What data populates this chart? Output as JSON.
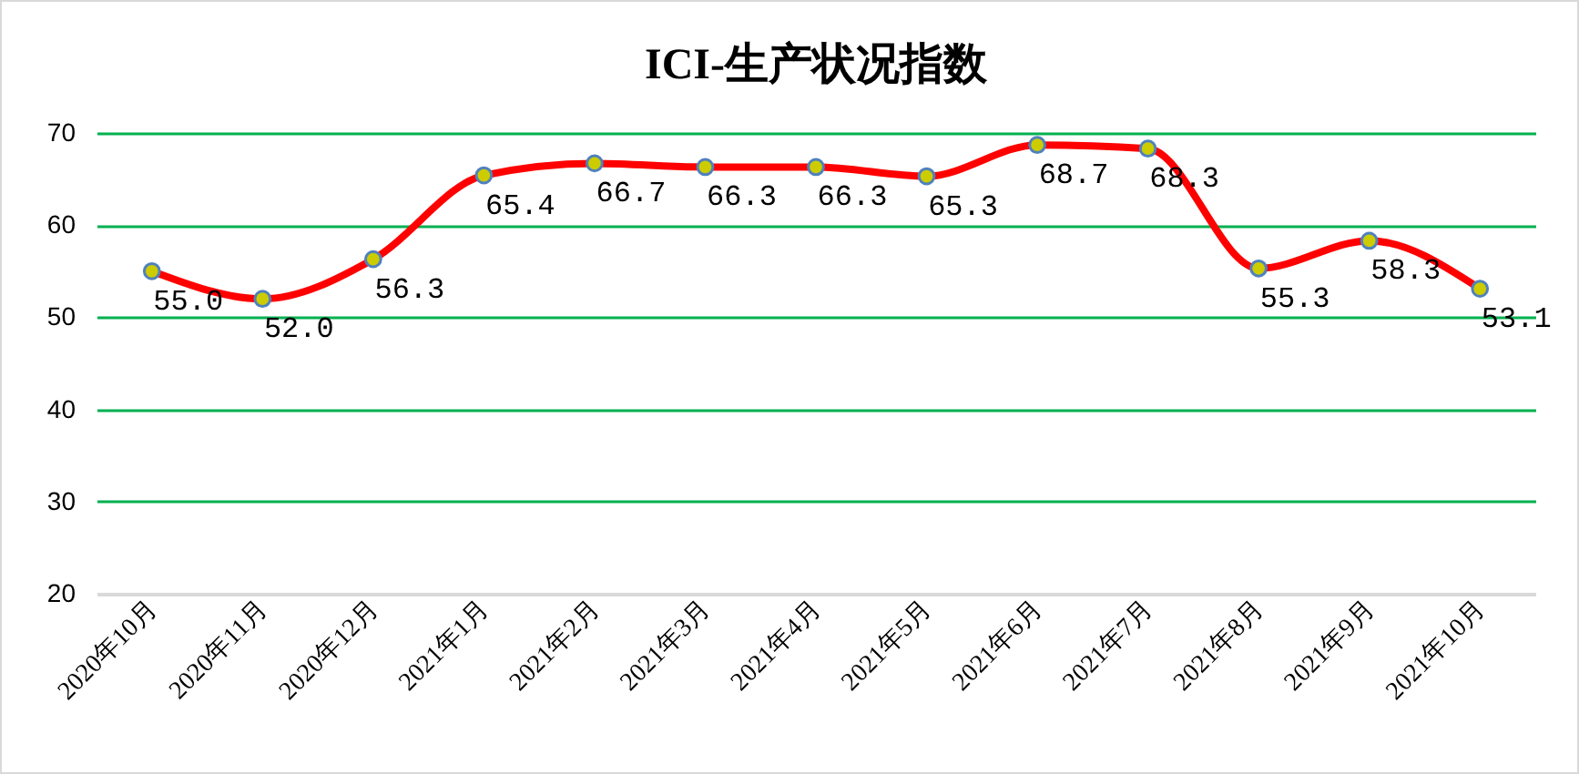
{
  "chart_data": {
    "type": "line",
    "title": "ICI-生产状况指数",
    "categories": [
      "2020年10月",
      "2020年11月",
      "2020年12月",
      "2021年1月",
      "2021年2月",
      "2021年3月",
      "2021年4月",
      "2021年5月",
      "2021年6月",
      "2021年7月",
      "2021年8月",
      "2021年9月",
      "2021年10月"
    ],
    "series": [
      {
        "color": "#ff0000",
        "values": [
          55.0,
          52.0,
          56.3,
          65.4,
          66.7,
          66.3,
          66.3,
          65.3,
          68.7,
          68.3,
          55.3,
          58.3,
          53.1
        ],
        "value_labels": [
          "55.0",
          "52.0",
          "56.3",
          "65.4",
          "66.7",
          "66.3",
          "66.3",
          "65.3",
          "68.7",
          "68.3",
          "55.3",
          "58.3",
          "53.1"
        ]
      }
    ],
    "ylim": [
      20,
      70
    ],
    "yticks": [
      20,
      30,
      40,
      50,
      60,
      70
    ],
    "grid": "y",
    "marker": "circle",
    "line_style": "solid"
  }
}
